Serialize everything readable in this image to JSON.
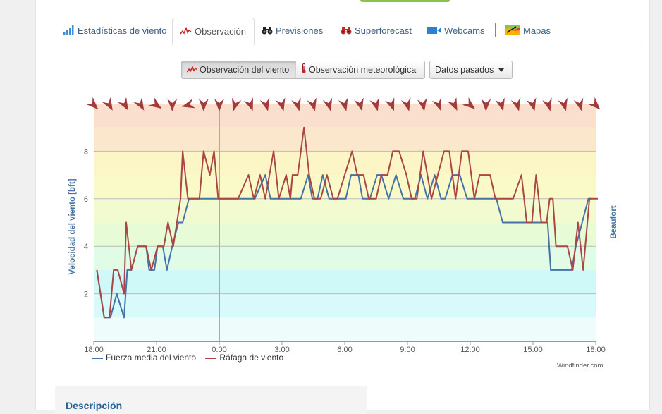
{
  "tabs": [
    {
      "label": "Estadísticas de viento",
      "icon": "bar-chart-icon"
    },
    {
      "label": "Observación",
      "icon": "wind-line-icon"
    },
    {
      "label": "Previsiones",
      "icon": "binoculars-icon"
    },
    {
      "label": "Superforecast",
      "icon": "binoculars-red-icon"
    },
    {
      "label": "Webcams",
      "icon": "camera-icon"
    },
    {
      "label": "Mapas",
      "icon": "map-icon"
    }
  ],
  "buttons": {
    "wind_obs": "Observación del viento",
    "weather_obs": "Observación meteorológica",
    "past_data": "Datos pasados"
  },
  "description_title": "Descripción",
  "colors": {
    "mean": "#4572a7",
    "gust": "#aa4643"
  },
  "chart_data": {
    "type": "line",
    "ylabel": "Velocidad del viento [bft]",
    "y2label": "Beaufort",
    "ylim": [
      0,
      10
    ],
    "yticks": [
      "2",
      "4",
      "6",
      "8"
    ],
    "xticks": [
      "18:00",
      "21:00",
      "0:00",
      "3:00",
      "6:00",
      "9:00",
      "12:00",
      "15:00",
      "18:00"
    ],
    "x_hours": [
      0,
      3,
      6,
      9,
      12,
      15,
      18,
      21,
      24
    ],
    "grid": true,
    "legend_position": "bottom-left",
    "credit": "Windfinder.com",
    "series": [
      {
        "name": "Fuerza media del viento",
        "color": "#4572a7",
        "points": [
          [
            0.15,
            3
          ],
          [
            0.5,
            1
          ],
          [
            0.8,
            1
          ],
          [
            1.1,
            2
          ],
          [
            1.45,
            1
          ],
          [
            1.6,
            3
          ],
          [
            1.8,
            3
          ],
          [
            2.1,
            4
          ],
          [
            2.5,
            4
          ],
          [
            2.65,
            3
          ],
          [
            2.9,
            3
          ],
          [
            3.05,
            4
          ],
          [
            3.3,
            4
          ],
          [
            3.5,
            3
          ],
          [
            3.75,
            4
          ],
          [
            4.05,
            5
          ],
          [
            4.25,
            5
          ],
          [
            4.55,
            6
          ],
          [
            6.6,
            6
          ],
          [
            6.8,
            6
          ],
          [
            7.45,
            6
          ],
          [
            7.7,
            6
          ],
          [
            8.2,
            7
          ],
          [
            8.45,
            6
          ],
          [
            9.9,
            6
          ],
          [
            10.25,
            7
          ],
          [
            10.45,
            6
          ],
          [
            10.7,
            6
          ],
          [
            10.95,
            7
          ],
          [
            11.25,
            6
          ],
          [
            12.05,
            6
          ],
          [
            12.3,
            7
          ],
          [
            12.65,
            7
          ],
          [
            12.85,
            6
          ],
          [
            13.2,
            6
          ],
          [
            13.55,
            7
          ],
          [
            13.75,
            7
          ],
          [
            14.1,
            6
          ],
          [
            14.45,
            7
          ],
          [
            14.8,
            6
          ],
          [
            15.35,
            6
          ],
          [
            15.65,
            7
          ],
          [
            15.95,
            6
          ],
          [
            16.3,
            7
          ],
          [
            16.6,
            6
          ],
          [
            16.8,
            6
          ],
          [
            17.15,
            7
          ],
          [
            17.5,
            7
          ],
          [
            17.85,
            6
          ],
          [
            18.6,
            6
          ],
          [
            19.25,
            6
          ],
          [
            19.55,
            5
          ],
          [
            20.45,
            5
          ],
          [
            21.15,
            5
          ],
          [
            21.7,
            5
          ],
          [
            21.85,
            3
          ],
          [
            22.85,
            3
          ],
          [
            23.05,
            4
          ],
          [
            23.35,
            5
          ],
          [
            23.65,
            6
          ],
          [
            23.8,
            6
          ]
        ]
      },
      {
        "name": "Ráfaga de viento",
        "color": "#aa4643",
        "points": [
          [
            0.15,
            3
          ],
          [
            0.5,
            1
          ],
          [
            0.75,
            1
          ],
          [
            0.95,
            3
          ],
          [
            1.15,
            3
          ],
          [
            1.45,
            2
          ],
          [
            1.55,
            5
          ],
          [
            1.8,
            3
          ],
          [
            2.1,
            4
          ],
          [
            2.5,
            4
          ],
          [
            2.75,
            3
          ],
          [
            3.05,
            4
          ],
          [
            3.35,
            4
          ],
          [
            3.55,
            5
          ],
          [
            3.8,
            4
          ],
          [
            4.15,
            6
          ],
          [
            4.25,
            8
          ],
          [
            4.5,
            6
          ],
          [
            5.05,
            6
          ],
          [
            5.25,
            8
          ],
          [
            5.55,
            7
          ],
          [
            5.75,
            8
          ],
          [
            5.95,
            6
          ],
          [
            6.6,
            6
          ],
          [
            6.9,
            6
          ],
          [
            7.4,
            7
          ],
          [
            7.65,
            6
          ],
          [
            7.95,
            7
          ],
          [
            8.2,
            6
          ],
          [
            8.6,
            8
          ],
          [
            8.85,
            6
          ],
          [
            9.2,
            7
          ],
          [
            9.4,
            6
          ],
          [
            9.5,
            7
          ],
          [
            9.75,
            7
          ],
          [
            10.05,
            9
          ],
          [
            10.3,
            7
          ],
          [
            10.55,
            6
          ],
          [
            10.85,
            6
          ],
          [
            11.15,
            7
          ],
          [
            11.45,
            6
          ],
          [
            11.65,
            6
          ],
          [
            12.0,
            7
          ],
          [
            12.35,
            8
          ],
          [
            12.6,
            7
          ],
          [
            12.9,
            7
          ],
          [
            13.15,
            6
          ],
          [
            13.5,
            6
          ],
          [
            13.75,
            7
          ],
          [
            14.05,
            7
          ],
          [
            14.3,
            8
          ],
          [
            14.6,
            8
          ],
          [
            14.95,
            7
          ],
          [
            15.2,
            6
          ],
          [
            15.45,
            6
          ],
          [
            15.75,
            8
          ],
          [
            16.15,
            6
          ],
          [
            16.45,
            7
          ],
          [
            16.75,
            8
          ],
          [
            17.0,
            8
          ],
          [
            17.3,
            6
          ],
          [
            17.6,
            8
          ],
          [
            17.9,
            8
          ],
          [
            18.2,
            6
          ],
          [
            18.45,
            7
          ],
          [
            18.95,
            7
          ],
          [
            19.2,
            6
          ],
          [
            19.85,
            6
          ],
          [
            20.05,
            6
          ],
          [
            20.45,
            7
          ],
          [
            20.7,
            5
          ],
          [
            20.95,
            5
          ],
          [
            21.15,
            7
          ],
          [
            21.4,
            5
          ],
          [
            21.65,
            5
          ],
          [
            21.8,
            6
          ],
          [
            21.95,
            6
          ],
          [
            22.1,
            4
          ],
          [
            22.65,
            4
          ],
          [
            22.9,
            3
          ],
          [
            23.15,
            5
          ],
          [
            23.4,
            3
          ],
          [
            23.7,
            6
          ],
          [
            24.1,
            6
          ]
        ]
      }
    ],
    "direction_arrows": [
      315,
      330,
      330,
      330,
      305,
      0,
      75,
      0,
      0,
      15,
      340,
      345,
      345,
      345,
      345,
      345,
      345,
      345,
      345,
      340,
      345,
      350,
      340,
      335,
      310,
      0,
      345,
      345,
      345,
      345,
      345,
      345,
      315
    ]
  }
}
